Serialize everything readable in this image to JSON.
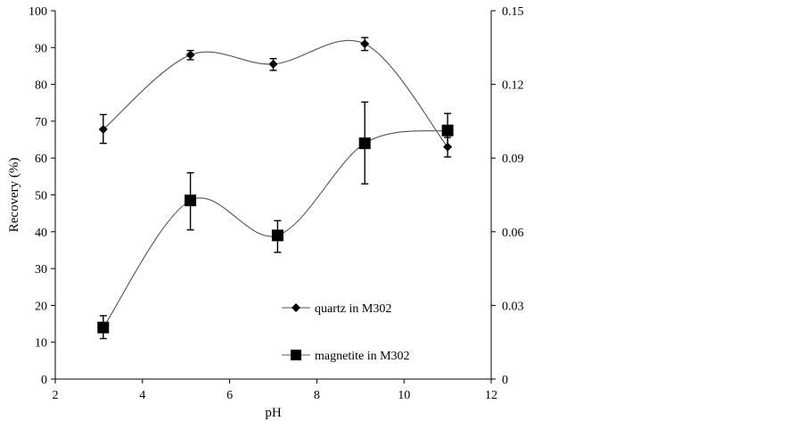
{
  "chart_data": {
    "type": "line",
    "xlabel": "pH",
    "ylabel": "Recovery (%)",
    "xlim": [
      2,
      12
    ],
    "ylim": [
      0,
      100
    ],
    "y2lim": [
      0,
      0.15
    ],
    "x_ticks": [
      "2",
      "4",
      "6",
      "8",
      "10",
      "12"
    ],
    "y_ticks": [
      "0",
      "10",
      "20",
      "30",
      "40",
      "50",
      "60",
      "70",
      "80",
      "90",
      "100"
    ],
    "y2_ticks": [
      "0",
      "0.03",
      "0.06",
      "0.09",
      "0.12",
      "0.15"
    ],
    "grid": false,
    "legend_position": "lower-right",
    "smooth": true,
    "series": [
      {
        "name": "quartz in M302",
        "marker": "diamond",
        "x": [
          3.1,
          5.1,
          7.0,
          9.1,
          11.0
        ],
        "y": [
          67.8,
          88.0,
          85.5,
          91.0,
          63.0
        ],
        "err_low": [
          3.8,
          1.3,
          1.7,
          1.8,
          2.7
        ],
        "err_high": [
          4.0,
          1.2,
          1.5,
          1.7,
          2.6
        ]
      },
      {
        "name": "magnetite in M302",
        "marker": "square",
        "x": [
          3.1,
          5.1,
          7.1,
          9.1,
          11.0
        ],
        "y": [
          14.0,
          48.5,
          39.0,
          64.0,
          67.5
        ],
        "err_low": [
          3.0,
          8.0,
          4.6,
          11.0,
          4.3
        ],
        "err_high": [
          3.2,
          7.5,
          4.0,
          11.2,
          4.6
        ]
      }
    ]
  }
}
